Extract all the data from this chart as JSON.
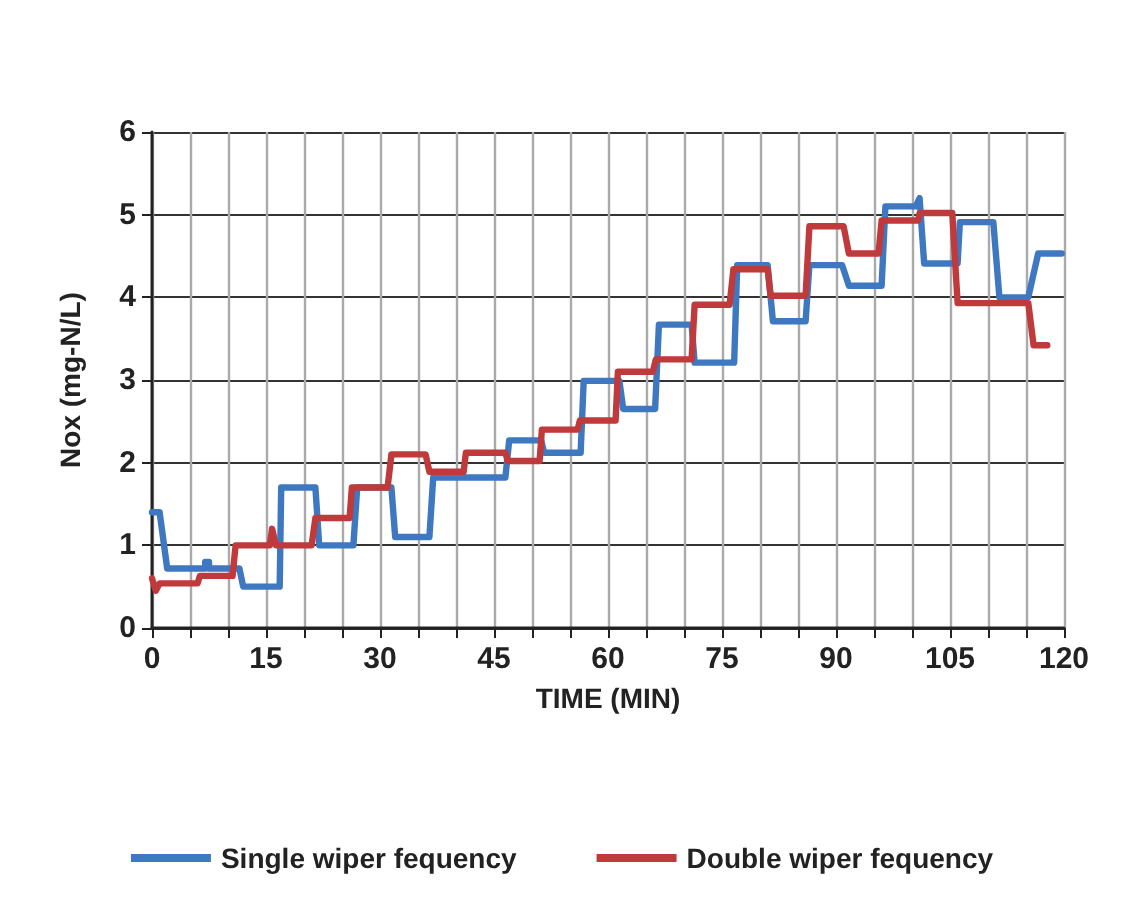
{
  "chart_data": {
    "type": "line",
    "xlabel": "TIME (MIN)",
    "ylabel": "Nox (mg-N/L)",
    "xlim": [
      0,
      120
    ],
    "xticks": [
      0,
      {
        "value": 5,
        "label": null
      },
      {
        "value": 10,
        "label": null
      },
      15,
      {
        "value": 20,
        "label": null
      },
      {
        "value": 25,
        "label": null
      },
      30,
      {
        "value": 35,
        "label": null
      },
      {
        "value": 40,
        "label": null
      },
      45,
      {
        "value": 50,
        "label": null
      },
      {
        "value": 55,
        "label": null
      },
      60,
      {
        "value": 65,
        "label": null
      },
      {
        "value": 70,
        "label": null
      },
      75,
      {
        "value": 80,
        "label": null
      },
      {
        "value": 85,
        "label": null
      },
      90,
      {
        "value": 95,
        "label": null
      },
      {
        "value": 100,
        "label": null
      },
      105,
      {
        "value": 110,
        "label": null
      },
      {
        "value": 115,
        "label": null
      },
      120
    ],
    "ylim": [
      0,
      6
    ],
    "yticks": [
      0,
      1,
      2,
      3,
      4,
      5,
      6
    ],
    "grid": true,
    "legend": "bottom",
    "marker": "none",
    "line_style": "solid",
    "series": [
      {
        "name": "Single wiper fequency",
        "color": "#3d78c0",
        "x": [
          0,
          1,
          2,
          7,
          7,
          7.5,
          7.5,
          11.5,
          12,
          16.8,
          17,
          21.5,
          22,
          26.5,
          27,
          31.5,
          32,
          36.5,
          37,
          46.5,
          47,
          51.2,
          51.6,
          56.4,
          56.8,
          61.5,
          62,
          66.2,
          66.7,
          71,
          71.4,
          76.6,
          77,
          81,
          81.7,
          86,
          86.5,
          90.8,
          91.7,
          96,
          96.5,
          100.5,
          101,
          101.6,
          106,
          106.3,
          110.7,
          111.5,
          115.3,
          116.6,
          119.7
        ],
        "values": [
          1.4,
          1.4,
          0.72,
          0.72,
          0.8,
          0.8,
          0.72,
          0.72,
          0.5,
          0.5,
          1.7,
          1.7,
          1.0,
          1.0,
          1.7,
          1.7,
          1.1,
          1.1,
          1.82,
          1.82,
          2.27,
          2.27,
          2.12,
          2.12,
          2.99,
          2.99,
          2.65,
          2.65,
          3.67,
          3.67,
          3.21,
          3.21,
          4.39,
          4.39,
          3.71,
          3.71,
          4.39,
          4.39,
          4.14,
          4.14,
          5.1,
          5.1,
          5.2,
          4.41,
          4.41,
          4.91,
          4.91,
          4.0,
          4.0,
          4.53,
          4.53
        ]
      },
      {
        "name": "Double wiper fequency",
        "color": "#c0393b",
        "x": [
          0,
          0.5,
          1,
          6,
          6.3,
          10.6,
          11,
          15.5,
          15.8,
          16.3,
          21,
          21.5,
          26,
          26.3,
          31,
          31.5,
          36,
          36.5,
          41,
          41.3,
          46.5,
          46.8,
          51,
          51.3,
          56,
          56.3,
          61,
          61.3,
          65.9,
          66.3,
          71,
          71.4,
          76,
          76.5,
          81,
          81.4,
          86,
          86.5,
          91,
          91.7,
          95.6,
          96,
          100.8,
          101,
          105.3,
          106,
          115.3,
          116,
          117.8
        ],
        "values": [
          0.6,
          0.45,
          0.54,
          0.54,
          0.63,
          0.63,
          1.0,
          1.0,
          1.2,
          1.0,
          1.0,
          1.33,
          1.33,
          1.7,
          1.7,
          2.1,
          2.1,
          1.89,
          1.89,
          2.12,
          2.12,
          2.02,
          2.02,
          2.4,
          2.4,
          2.51,
          2.51,
          3.1,
          3.1,
          3.25,
          3.25,
          3.91,
          3.91,
          4.34,
          4.34,
          4.02,
          4.02,
          4.86,
          4.86,
          4.53,
          4.53,
          4.93,
          4.93,
          5.02,
          5.02,
          3.93,
          3.93,
          3.42,
          3.42
        ]
      }
    ]
  }
}
